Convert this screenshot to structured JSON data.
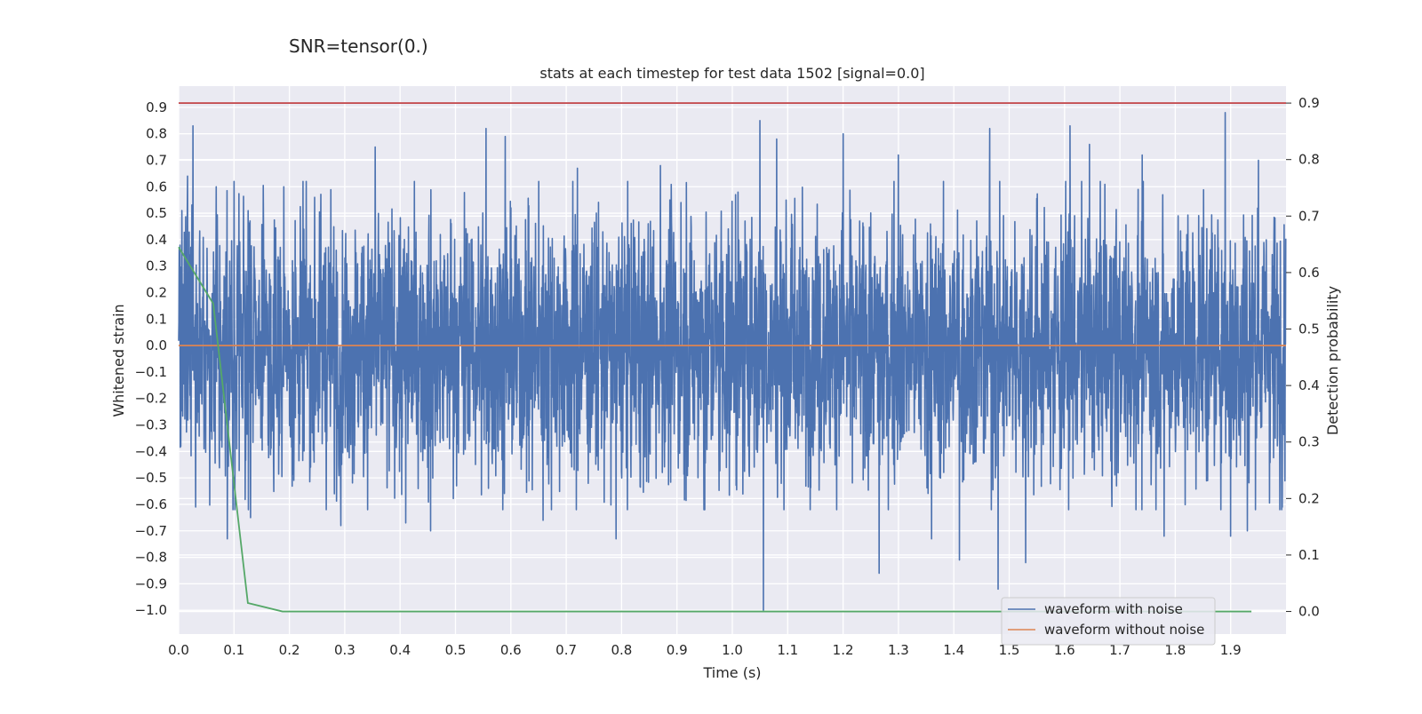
{
  "suptitle": "SNR=tensor(0.)",
  "chart_data": {
    "type": "line",
    "title": "stats at each timestep for test data 1502 [signal=0.0]",
    "xlabel": "Time (s)",
    "ylabel": "Whitened strain",
    "y2label": "Detection probability",
    "xlim": [
      0.0,
      2.0
    ],
    "ylim": [
      -1.09,
      0.98
    ],
    "y2lim": [
      -0.04,
      0.93
    ],
    "xticks": [
      "0.0",
      "0.1",
      "0.2",
      "0.3",
      "0.4",
      "0.5",
      "0.6",
      "0.7",
      "0.8",
      "0.9",
      "1.0",
      "1.1",
      "1.2",
      "1.3",
      "1.4",
      "1.5",
      "1.6",
      "1.7",
      "1.8",
      "1.9"
    ],
    "yticks": [
      "−1.0",
      "−0.9",
      "−0.8",
      "−0.7",
      "−0.6",
      "−0.5",
      "−0.4",
      "−0.3",
      "−0.2",
      "−0.1",
      "0.0",
      "0.1",
      "0.2",
      "0.3",
      "0.4",
      "0.5",
      "0.6",
      "0.7",
      "0.8",
      "0.9"
    ],
    "y2ticks": [
      "0.0",
      "0.1",
      "0.2",
      "0.3",
      "0.4",
      "0.5",
      "0.6",
      "0.7",
      "0.8",
      "0.9"
    ],
    "grid": true,
    "legend_position": "lower-right",
    "background": "#eaeaf2",
    "colors": {
      "noisy": "#4c72b0",
      "clean": "#dd8452",
      "prob": "#55a868",
      "threshold": "#c44e52"
    },
    "series": [
      {
        "name": "waveform with noise",
        "axis": "left",
        "sample_rate_hz": 2048,
        "duration_s": 2.0,
        "stats": {
          "max": 0.88,
          "min": -1.0,
          "typical_abs": 0.35
        },
        "peaks": [
          {
            "x": 0.006,
            "y": 0.51
          },
          {
            "x": 0.016,
            "y": 0.64
          },
          {
            "x": 0.026,
            "y": 0.83
          },
          {
            "x": 0.031,
            "y": -0.61
          },
          {
            "x": 0.068,
            "y": 0.6
          },
          {
            "x": 0.088,
            "y": -0.73
          },
          {
            "x": 0.1,
            "y": 0.62
          },
          {
            "x": 0.13,
            "y": -0.65
          },
          {
            "x": 0.19,
            "y": 0.6
          },
          {
            "x": 0.293,
            "y": -0.68
          },
          {
            "x": 0.355,
            "y": 0.75
          },
          {
            "x": 0.41,
            "y": -0.67
          },
          {
            "x": 0.455,
            "y": -0.7
          },
          {
            "x": 0.555,
            "y": 0.82
          },
          {
            "x": 0.59,
            "y": 0.79
          },
          {
            "x": 0.658,
            "y": -0.66
          },
          {
            "x": 0.72,
            "y": 0.67
          },
          {
            "x": 0.79,
            "y": -0.73
          },
          {
            "x": 0.87,
            "y": 0.68
          },
          {
            "x": 0.95,
            "y": -0.62
          },
          {
            "x": 1.006,
            "y": 0.57
          },
          {
            "x": 1.05,
            "y": 0.85
          },
          {
            "x": 1.056,
            "y": -1.0
          },
          {
            "x": 1.08,
            "y": 0.78
          },
          {
            "x": 1.2,
            "y": 0.8
          },
          {
            "x": 1.265,
            "y": -0.86
          },
          {
            "x": 1.3,
            "y": 0.72
          },
          {
            "x": 1.36,
            "y": -0.73
          },
          {
            "x": 1.41,
            "y": -0.81
          },
          {
            "x": 1.465,
            "y": 0.82
          },
          {
            "x": 1.48,
            "y": -0.92
          },
          {
            "x": 1.53,
            "y": -0.82
          },
          {
            "x": 1.61,
            "y": 0.83
          },
          {
            "x": 1.645,
            "y": 0.76
          },
          {
            "x": 1.74,
            "y": 0.72
          },
          {
            "x": 1.78,
            "y": -0.72
          },
          {
            "x": 1.89,
            "y": 0.88
          },
          {
            "x": 1.9,
            "y": -0.72
          },
          {
            "x": 1.93,
            "y": -0.7
          },
          {
            "x": 1.95,
            "y": 0.7
          }
        ]
      },
      {
        "name": "waveform without noise",
        "axis": "left",
        "x": [
          0.0,
          2.0
        ],
        "y": [
          0.0,
          0.0
        ]
      },
      {
        "axis": "right",
        "x": [
          0.0,
          0.0625,
          0.125,
          0.1875,
          0.25,
          0.5,
          0.75,
          1.0,
          1.25,
          1.5,
          1.75,
          1.9375
        ],
        "y": [
          0.645,
          0.545,
          0.015,
          0.0,
          0.0,
          0.0,
          0.0,
          0.0,
          0.0,
          0.0,
          0.0,
          0.0
        ]
      },
      {
        "axis": "right",
        "x": [
          0.0,
          2.0
        ],
        "y": [
          0.9,
          0.9
        ]
      }
    ]
  }
}
